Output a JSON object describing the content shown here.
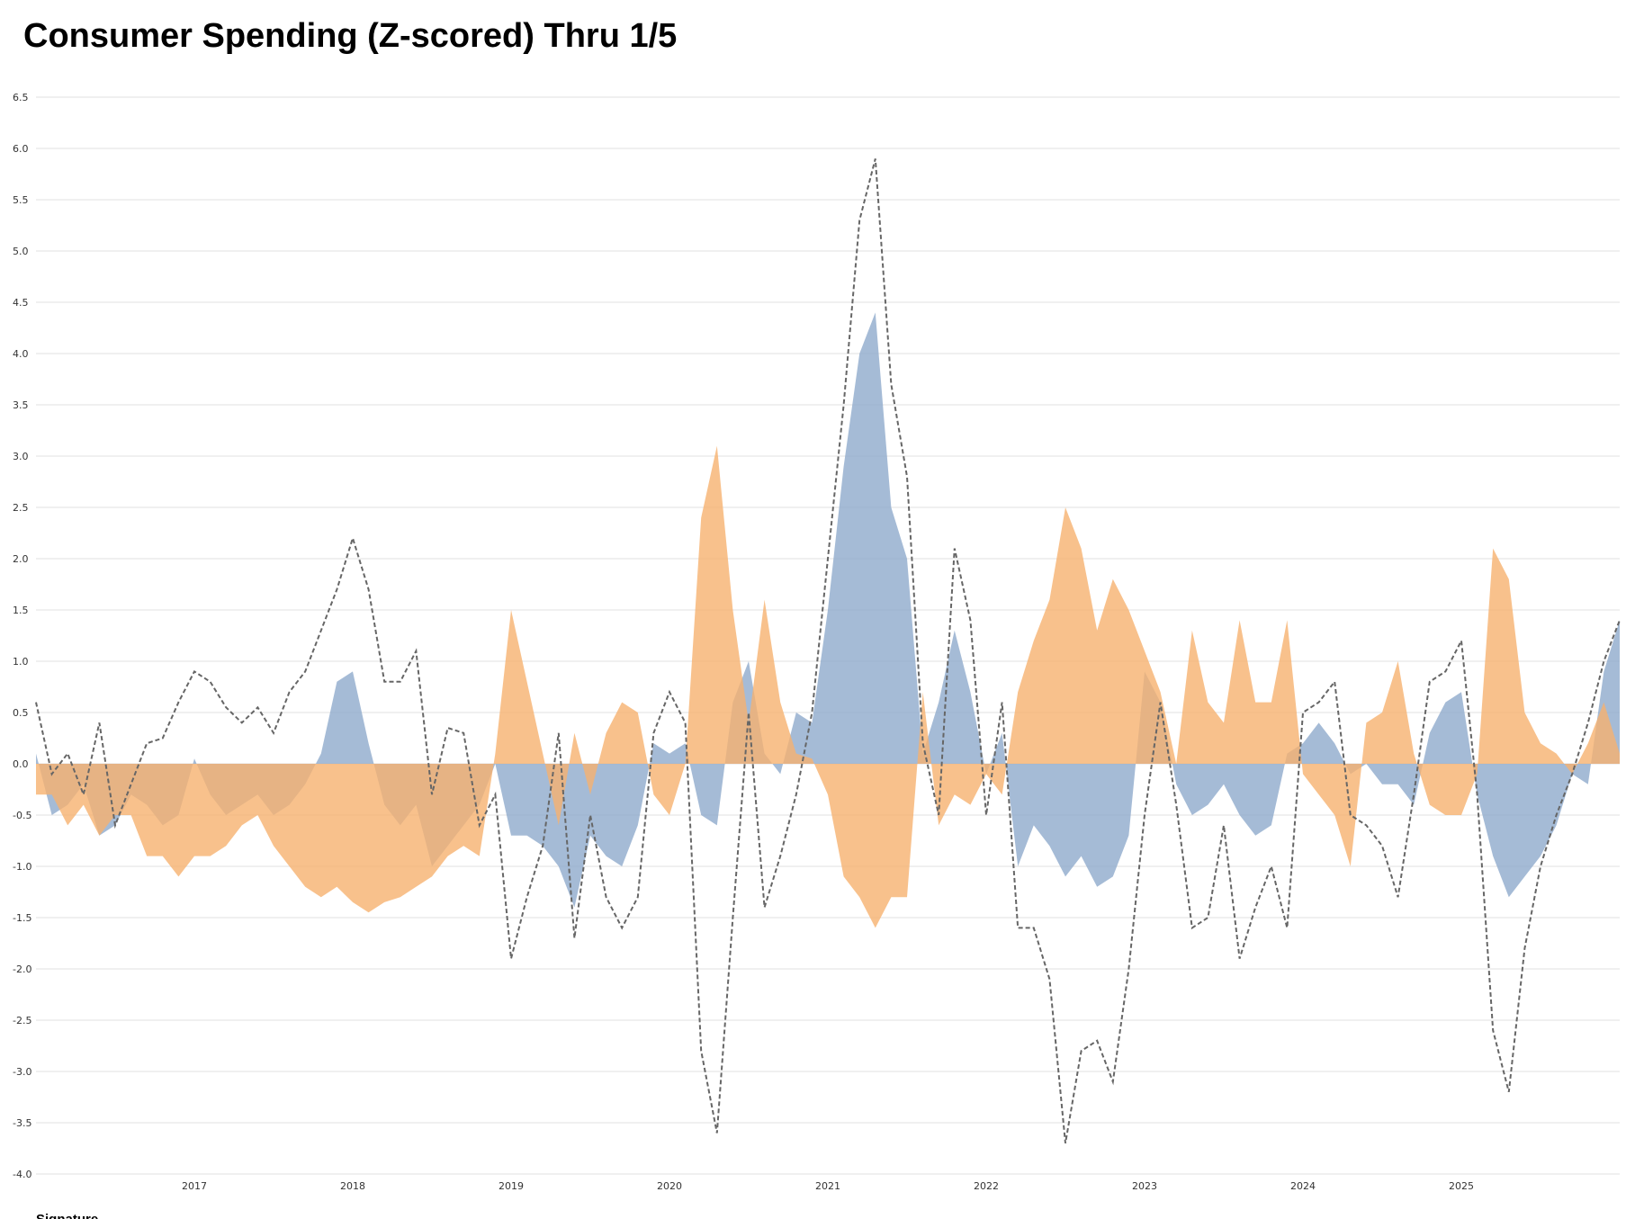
{
  "chart_data": {
    "type": "area",
    "title": "Consumer Spending (Z-scored) Thru 1/5",
    "source": "Signature",
    "x": [
      2016.0,
      2016.1,
      2016.2,
      2016.3,
      2016.4,
      2016.5,
      2016.6,
      2016.7,
      2016.8,
      2016.9,
      2017.0,
      2017.1,
      2017.2,
      2017.3,
      2017.4,
      2017.5,
      2017.6,
      2017.7,
      2017.8,
      2017.9,
      2018.0,
      2018.1,
      2018.2,
      2018.3,
      2018.4,
      2018.5,
      2018.6,
      2018.7,
      2018.8,
      2018.9,
      2019.0,
      2019.1,
      2019.2,
      2019.3,
      2019.4,
      2019.5,
      2019.6,
      2019.7,
      2019.8,
      2019.9,
      2020.0,
      2020.1,
      2020.2,
      2020.3,
      2020.4,
      2020.5,
      2020.6,
      2020.7,
      2020.8,
      2020.9,
      2021.0,
      2021.1,
      2021.2,
      2021.3,
      2021.4,
      2021.5,
      2021.6,
      2021.7,
      2021.8,
      2021.9,
      2022.0,
      2022.1,
      2022.2,
      2022.3,
      2022.4,
      2022.5,
      2022.6,
      2022.7,
      2022.8,
      2022.9,
      2023.0,
      2023.1,
      2023.2,
      2023.3,
      2023.4,
      2023.5,
      2023.6,
      2023.7,
      2023.8,
      2023.9,
      2024.0,
      2024.1,
      2024.2,
      2024.3,
      2024.4,
      2024.5,
      2024.6,
      2024.7,
      2024.8,
      2024.9,
      2025.0,
      2025.1,
      2025.2,
      2025.3,
      2025.4,
      2025.5,
      2025.6,
      2025.7,
      2025.8,
      2025.9,
      2026.0
    ],
    "series": [
      {
        "kind": "area",
        "color": "#8eaacc",
        "values": [
          0.1,
          -0.5,
          -0.4,
          -0.2,
          -0.7,
          -0.6,
          -0.3,
          -0.4,
          -0.6,
          -0.5,
          0.05,
          -0.3,
          -0.5,
          -0.4,
          -0.3,
          -0.5,
          -0.4,
          -0.2,
          0.1,
          0.8,
          0.9,
          0.2,
          -0.4,
          -0.6,
          -0.4,
          -1.0,
          -0.8,
          -0.6,
          -0.4,
          0.0,
          -0.7,
          -0.7,
          -0.8,
          -1.0,
          -1.4,
          -0.7,
          -0.9,
          -1.0,
          -0.6,
          0.2,
          0.1,
          0.2,
          -0.5,
          -0.6,
          0.6,
          1.0,
          0.1,
          -0.1,
          0.5,
          0.4,
          1.5,
          2.9,
          4.0,
          4.4,
          2.5,
          2.0,
          0.1,
          0.6,
          1.3,
          0.7,
          -0.1,
          0.3,
          -1.0,
          -0.6,
          -0.8,
          -1.1,
          -0.9,
          -1.2,
          -1.1,
          -0.7,
          0.9,
          0.6,
          -0.2,
          -0.5,
          -0.4,
          -0.2,
          -0.5,
          -0.7,
          -0.6,
          0.1,
          0.2,
          0.4,
          0.2,
          -0.1,
          0.0,
          -0.2,
          -0.2,
          -0.4,
          0.3,
          0.6,
          0.7,
          -0.3,
          -0.9,
          -1.3,
          -1.1,
          -0.9,
          -0.6,
          -0.1,
          -0.2,
          0.9,
          1.4
        ]
      },
      {
        "kind": "area",
        "color": "#f6b26f",
        "values": [
          -0.3,
          -0.3,
          -0.6,
          -0.4,
          -0.7,
          -0.5,
          -0.5,
          -0.9,
          -0.9,
          -1.1,
          -0.9,
          -0.9,
          -0.8,
          -0.6,
          -0.5,
          -0.8,
          -1.0,
          -1.2,
          -1.3,
          -1.2,
          -1.35,
          -1.45,
          -1.35,
          -1.3,
          -1.2,
          -1.1,
          -0.9,
          -0.8,
          -0.9,
          0.1,
          1.5,
          0.8,
          0.1,
          -0.6,
          0.3,
          -0.3,
          0.3,
          0.6,
          0.5,
          -0.3,
          -0.5,
          0.0,
          2.4,
          3.1,
          1.5,
          0.4,
          1.6,
          0.6,
          0.1,
          0.05,
          -0.3,
          -1.1,
          -1.3,
          -1.6,
          -1.3,
          -1.3,
          0.7,
          -0.6,
          -0.3,
          -0.4,
          -0.1,
          -0.3,
          0.7,
          1.2,
          1.6,
          2.5,
          2.1,
          1.3,
          1.8,
          1.5,
          1.1,
          0.7,
          0.0,
          1.3,
          0.6,
          0.4,
          1.4,
          0.6,
          0.6,
          1.4,
          -0.1,
          -0.3,
          -0.5,
          -1.0,
          0.4,
          0.5,
          1.0,
          0.1,
          -0.4,
          -0.5,
          -0.5,
          -0.1,
          2.1,
          1.8,
          0.5,
          0.2,
          0.1,
          -0.1,
          0.2,
          0.6,
          0.1
        ]
      },
      {
        "kind": "line",
        "color": "#666666",
        "values": [
          0.6,
          -0.1,
          0.1,
          -0.3,
          0.4,
          -0.6,
          -0.2,
          0.2,
          0.25,
          0.6,
          0.9,
          0.8,
          0.55,
          0.4,
          0.55,
          0.3,
          0.7,
          0.9,
          1.3,
          1.7,
          2.2,
          1.7,
          0.8,
          0.8,
          1.1,
          -0.3,
          0.35,
          0.3,
          -0.6,
          -0.3,
          -1.9,
          -1.3,
          -0.8,
          0.3,
          -1.7,
          -0.5,
          -1.3,
          -1.6,
          -1.3,
          0.3,
          0.7,
          0.4,
          -2.8,
          -3.6,
          -1.5,
          0.5,
          -1.4,
          -0.9,
          -0.3,
          0.5,
          2.0,
          3.5,
          5.3,
          5.9,
          3.7,
          2.8,
          0.2,
          -0.5,
          2.1,
          1.4,
          -0.5,
          0.6,
          -1.6,
          -1.6,
          -2.1,
          -3.7,
          -2.8,
          -2.7,
          -3.1,
          -2.0,
          -0.5,
          0.6,
          -0.4,
          -1.6,
          -1.5,
          -0.6,
          -1.9,
          -1.4,
          -1.0,
          -1.6,
          0.5,
          0.6,
          0.8,
          -0.5,
          -0.6,
          -0.8,
          -1.3,
          -0.3,
          0.8,
          0.9,
          1.2,
          -0.3,
          -2.6,
          -3.2,
          -1.8,
          -1.0,
          -0.5,
          -0.1,
          0.4,
          1.0,
          1.4
        ]
      }
    ],
    "xlim": [
      2016,
      2026
    ],
    "xticks": [
      2017,
      2018,
      2019,
      2020,
      2021,
      2022,
      2023,
      2024,
      2025
    ],
    "ylim": [
      -4,
      6.5
    ],
    "yticks": [
      {
        "value": -4,
        "label": "-4.0"
      },
      -3.5,
      {
        "value": -3,
        "label": "-3.0"
      },
      -2.5,
      {
        "value": -2,
        "label": "-2.0"
      },
      -1.5,
      {
        "value": -1,
        "label": "-1.0"
      },
      -0.5,
      {
        "value": 0,
        "label": "0.0"
      },
      0.5,
      {
        "value": 1,
        "label": "1.0"
      },
      1.5,
      {
        "value": 2,
        "label": "2.0"
      },
      2.5,
      {
        "value": 3,
        "label": "3.0"
      },
      3.5,
      {
        "value": 4,
        "label": "4.0"
      },
      4.5,
      {
        "value": 5,
        "label": "5.0"
      },
      5.5,
      {
        "value": 6,
        "label": "6.0"
      },
      6.5
    ],
    "grid": true
  }
}
